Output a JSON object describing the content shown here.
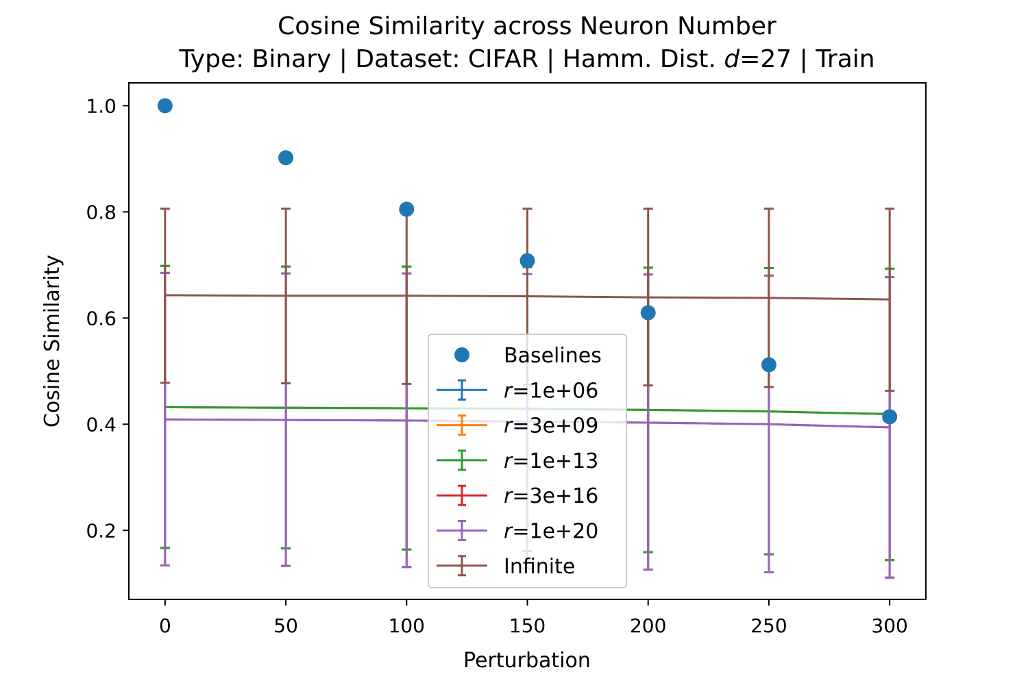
{
  "chart_data": {
    "type": "line",
    "title": "Cosine Similarity across Neuron Number",
    "subtitle_parts": [
      "Type: Binary | Dataset: CIFAR | Hamm. Dist. ",
      "d",
      "=27 | Train"
    ],
    "xlabel": "Perturbation",
    "ylabel": "Cosine Similarity",
    "xlim": [
      -15,
      315
    ],
    "ylim": [
      0.07,
      1.043
    ],
    "x_ticks": [
      0,
      50,
      100,
      150,
      200,
      250,
      300
    ],
    "x_tick_labels": [
      "0",
      "50",
      "100",
      "150",
      "200",
      "250",
      "300"
    ],
    "y_ticks": [
      0.2,
      0.4,
      0.6,
      0.8,
      1.0
    ],
    "y_tick_labels": [
      "0.2",
      "0.4",
      "0.6",
      "0.8",
      "1.0"
    ],
    "grid": false,
    "legend_position": "lower-center",
    "x": [
      0,
      50,
      100,
      150,
      200,
      250,
      300
    ],
    "baselines": {
      "name": "Baselines",
      "color": "#1f77b4",
      "values": [
        1.0,
        0.902,
        0.805,
        0.708,
        0.61,
        0.512,
        0.414
      ]
    },
    "series": [
      {
        "name_prefix": "r",
        "name_suffix": "=1e+06",
        "color": "#1f77b4",
        "values": [
          0.432,
          0.431,
          0.43,
          0.429,
          0.427,
          0.424,
          0.419
        ],
        "err_low": [
          0.167,
          0.166,
          0.164,
          0.161,
          0.159,
          0.155,
          0.144
        ],
        "err_high": [
          0.698,
          0.697,
          0.697,
          0.696,
          0.695,
          0.694,
          0.693
        ]
      },
      {
        "name_prefix": "r",
        "name_suffix": "=3e+09",
        "color": "#ff7f0e",
        "values": [
          0.432,
          0.431,
          0.43,
          0.429,
          0.427,
          0.424,
          0.419
        ],
        "err_low": [
          0.167,
          0.166,
          0.164,
          0.161,
          0.159,
          0.155,
          0.144
        ],
        "err_high": [
          0.698,
          0.697,
          0.697,
          0.696,
          0.695,
          0.694,
          0.693
        ]
      },
      {
        "name_prefix": "r",
        "name_suffix": "=1e+13",
        "color": "#2ca02c",
        "values": [
          0.432,
          0.431,
          0.43,
          0.429,
          0.427,
          0.424,
          0.419
        ],
        "err_low": [
          0.167,
          0.166,
          0.164,
          0.161,
          0.159,
          0.155,
          0.144
        ],
        "err_high": [
          0.698,
          0.697,
          0.697,
          0.696,
          0.695,
          0.694,
          0.693
        ]
      },
      {
        "name_prefix": "r",
        "name_suffix": "=3e+16",
        "color": "#d62728",
        "values": [
          0.409,
          0.408,
          0.407,
          0.405,
          0.403,
          0.4,
          0.394
        ],
        "err_low": [
          0.134,
          0.133,
          0.131,
          0.128,
          0.126,
          0.121,
          0.111
        ],
        "err_high": [
          0.685,
          0.684,
          0.684,
          0.683,
          0.682,
          0.68,
          0.677
        ]
      },
      {
        "name_prefix": "r",
        "name_suffix": "=1e+20",
        "color": "#9467bd",
        "values": [
          0.409,
          0.408,
          0.407,
          0.405,
          0.403,
          0.4,
          0.394
        ],
        "err_low": [
          0.134,
          0.133,
          0.131,
          0.128,
          0.126,
          0.121,
          0.111
        ],
        "err_high": [
          0.685,
          0.684,
          0.684,
          0.683,
          0.682,
          0.68,
          0.677
        ]
      },
      {
        "name_prefix": "",
        "name_suffix": "Infinite",
        "color": "#8c564b",
        "values": [
          0.643,
          0.642,
          0.642,
          0.641,
          0.639,
          0.638,
          0.635
        ],
        "err_low": [
          0.478,
          0.477,
          0.476,
          0.474,
          0.473,
          0.47,
          0.463
        ],
        "err_high": [
          0.806,
          0.806,
          0.806,
          0.806,
          0.806,
          0.806,
          0.806
        ]
      }
    ]
  }
}
